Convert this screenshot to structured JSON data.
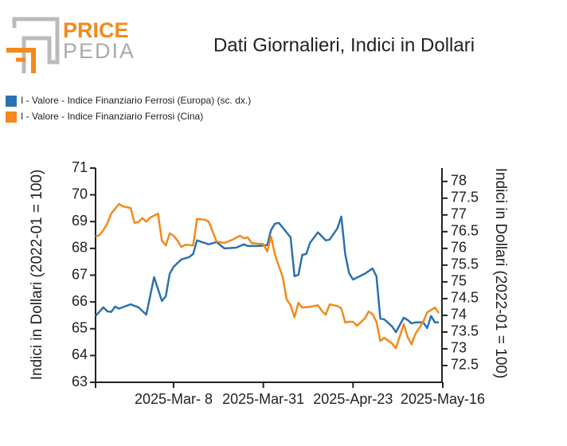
{
  "logo": {
    "top": "PRICE",
    "bottom": "PEDIA"
  },
  "chart_data": {
    "type": "line",
    "title": "Dati Giornalieri, Indici in Dollari",
    "ylabel": "Indici in Dollari (2022-01 = 100)",
    "y2label": "Indici in Dollari (2022-01 = 100)",
    "xlim": [
      "2025-02-16",
      "2025-05-16"
    ],
    "xticks": [
      {
        "value": "2025-03-08",
        "label": "2025-Mar- 8"
      },
      {
        "value": "2025-03-31",
        "label": "2025-Mar-31"
      },
      {
        "value": "2025-04-23",
        "label": "2025-Apr-23"
      },
      {
        "value": "2025-05-16",
        "label": "2025-May-16"
      }
    ],
    "ylim": [
      63,
      71
    ],
    "yticks": [
      63,
      64,
      65,
      66,
      67,
      68,
      69,
      70,
      71
    ],
    "y2lim": [
      72,
      78.4
    ],
    "y2ticks": [
      72.5,
      73,
      73.5,
      74,
      74.5,
      75,
      75.5,
      76,
      76.5,
      77,
      77.5,
      78
    ],
    "legend": "top-left",
    "series": [
      {
        "name": "I - Valore - Indice Finanziario Ferrosi (Europa) (sc. dx.)",
        "color": "#2b72b0",
        "axis": "y2",
        "x": [
          "2025-02-16",
          "2025-02-18",
          "2025-02-19",
          "2025-02-20",
          "2025-02-21",
          "2025-02-22",
          "2025-02-25",
          "2025-02-27",
          "2025-03-01",
          "2025-03-03",
          "2025-03-05",
          "2025-03-06",
          "2025-03-07",
          "2025-03-08",
          "2025-03-10",
          "2025-03-12",
          "2025-03-13",
          "2025-03-14",
          "2025-03-17",
          "2025-03-19",
          "2025-03-21",
          "2025-03-24",
          "2025-03-26",
          "2025-03-27",
          "2025-03-30",
          "2025-04-01",
          "2025-04-02",
          "2025-04-03",
          "2025-04-04",
          "2025-04-07",
          "2025-04-08",
          "2025-04-09",
          "2025-04-10",
          "2025-04-11",
          "2025-04-12",
          "2025-04-14",
          "2025-04-16",
          "2025-04-17",
          "2025-04-19",
          "2025-04-20",
          "2025-04-21",
          "2025-04-22",
          "2025-04-23",
          "2025-04-26",
          "2025-04-28",
          "2025-04-29",
          "2025-04-30",
          "2025-05-01",
          "2025-05-03",
          "2025-05-04",
          "2025-05-06",
          "2025-05-07",
          "2025-05-08",
          "2025-05-09",
          "2025-05-11",
          "2025-05-12",
          "2025-05-13",
          "2025-05-14",
          "2025-05-15"
        ],
        "values": [
          73.98,
          74.24,
          74.12,
          74.1,
          74.26,
          74.2,
          74.33,
          74.24,
          74.02,
          75.14,
          74.43,
          74.57,
          75.24,
          75.45,
          75.67,
          75.74,
          75.83,
          76.24,
          76.12,
          76.19,
          76.0,
          76.02,
          76.12,
          76.07,
          76.07,
          76.1,
          76.55,
          76.74,
          76.76,
          76.33,
          75.17,
          75.21,
          75.81,
          75.83,
          76.17,
          76.48,
          76.24,
          76.26,
          76.6,
          76.95,
          75.83,
          75.26,
          75.07,
          75.24,
          75.4,
          75.17,
          73.9,
          73.88,
          73.67,
          73.5,
          73.93,
          73.86,
          73.76,
          73.79,
          73.79,
          73.62,
          73.98,
          73.79,
          73.79
        ]
      },
      {
        "name": "I - Valore - Indice Finanziario Ferrosi (Cina)",
        "color": "#f28a1c",
        "axis": "y",
        "x": [
          "2025-02-16",
          "2025-02-17",
          "2025-02-18",
          "2025-02-19",
          "2025-02-20",
          "2025-02-22",
          "2025-02-23",
          "2025-02-25",
          "2025-02-26",
          "2025-02-27",
          "2025-02-28",
          "2025-03-01",
          "2025-03-02",
          "2025-03-04",
          "2025-03-05",
          "2025-03-06",
          "2025-03-07",
          "2025-03-08",
          "2025-03-09",
          "2025-03-10",
          "2025-03-11",
          "2025-03-13",
          "2025-03-14",
          "2025-03-16",
          "2025-03-17",
          "2025-03-19",
          "2025-03-21",
          "2025-03-23",
          "2025-03-25",
          "2025-03-26",
          "2025-03-27",
          "2025-03-28",
          "2025-03-30",
          "2025-03-31",
          "2025-04-01",
          "2025-04-02",
          "2025-04-03",
          "2025-04-05",
          "2025-04-06",
          "2025-04-07",
          "2025-04-08",
          "2025-04-09",
          "2025-04-10",
          "2025-04-12",
          "2025-04-14",
          "2025-04-15",
          "2025-04-16",
          "2025-04-17",
          "2025-04-19",
          "2025-04-20",
          "2025-04-21",
          "2025-04-22",
          "2025-04-23",
          "2025-04-24",
          "2025-04-26",
          "2025-04-27",
          "2025-04-28",
          "2025-04-29",
          "2025-04-30",
          "2025-05-01",
          "2025-05-03",
          "2025-05-04",
          "2025-05-06",
          "2025-05-07",
          "2025-05-08",
          "2025-05-09",
          "2025-05-11",
          "2025-05-12",
          "2025-05-14",
          "2025-05-15"
        ],
        "values": [
          68.44,
          68.5,
          68.68,
          68.92,
          69.3,
          69.66,
          69.57,
          69.51,
          68.95,
          68.98,
          69.13,
          69.0,
          69.15,
          69.3,
          68.29,
          68.11,
          68.56,
          68.47,
          68.29,
          68.05,
          68.14,
          68.11,
          69.1,
          69.07,
          69.0,
          68.26,
          68.2,
          68.32,
          68.47,
          68.38,
          68.41,
          68.2,
          68.17,
          68.17,
          67.88,
          68.44,
          67.76,
          66.92,
          66.09,
          65.88,
          65.43,
          65.97,
          65.79,
          65.82,
          65.88,
          65.67,
          65.52,
          65.91,
          65.85,
          65.76,
          65.23,
          65.26,
          65.26,
          65.11,
          65.38,
          65.64,
          65.55,
          65.26,
          64.54,
          64.66,
          64.45,
          64.27,
          65.17,
          64.69,
          64.42,
          64.81,
          65.26,
          65.61,
          65.79,
          65.58
        ]
      }
    ]
  }
}
